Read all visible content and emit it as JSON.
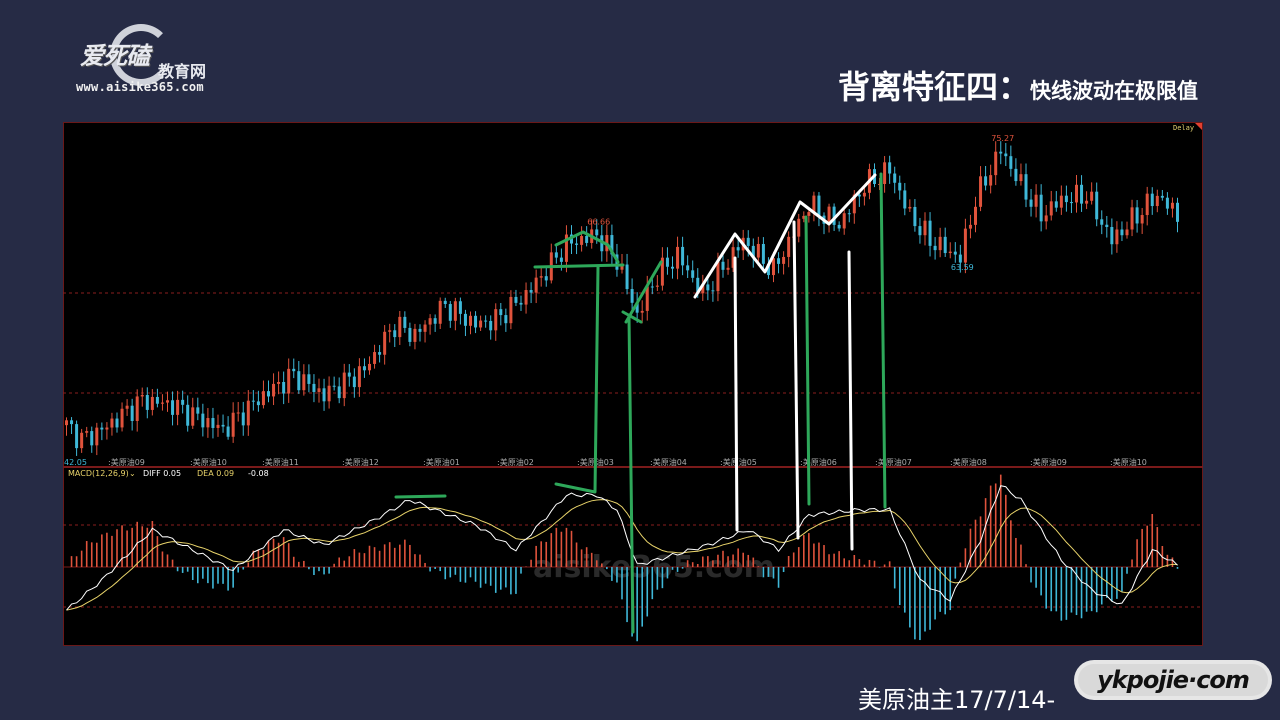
{
  "logo": {
    "brand": "爱死磕",
    "sub": "教育网",
    "url": "www.aisike365.com"
  },
  "title": {
    "main": "背离特征四",
    "colon": "：",
    "sub": "快线波动在极限值"
  },
  "footer": {
    "caption": "美原油主17/7/14-"
  },
  "watermark": {
    "text": "ykpojie·com",
    "panel_text": "aisike365.com"
  },
  "chart": {
    "status": "Delay",
    "low_left_label": "42.05",
    "macd_header": {
      "name": "MACD(12,26,9)",
      "arrow": "⌄",
      "diff": "DIFF 0.05",
      "dea": "DEA 0.09",
      "macd": "-0.08"
    },
    "colors": {
      "up": "#e0533c",
      "down": "#3fb8d8",
      "diff_line": "#ffffff",
      "dea_line": "#e8d36a",
      "grid": "#8a1e1e",
      "annotation_green": "#2ea85a",
      "annotation_white": "#ffffff"
    }
  },
  "chart_data": {
    "type": "candlestick",
    "x_tick_labels": [
      ":美原油09",
      ":美原油10",
      ":美原油11",
      ":美原油12",
      ":美原油01",
      ":美原油02",
      ":美原油03",
      ":美原油04",
      ":美原油05",
      ":美原油06",
      ":美原油07",
      ":美原油08",
      ":美原油09",
      ":美原油10"
    ],
    "price_annotations": [
      {
        "label": "66.66",
        "bar": 105,
        "price": 66.66
      },
      {
        "label": "75.27",
        "bar": 185,
        "price": 75.27
      },
      {
        "label": "63.59",
        "bar": 177,
        "price": 63.59
      }
    ],
    "price_path": [
      [
        0,
        46.3
      ],
      [
        3,
        44.8
      ],
      [
        7,
        45.8
      ],
      [
        15,
        48.9
      ],
      [
        21,
        48.4
      ],
      [
        31,
        45.8
      ],
      [
        39,
        49.4
      ],
      [
        45,
        51.5
      ],
      [
        51,
        49.4
      ],
      [
        59,
        52.0
      ],
      [
        65,
        56.7
      ],
      [
        69,
        55.6
      ],
      [
        75,
        58.7
      ],
      [
        81,
        56.7
      ],
      [
        85,
        57.2
      ],
      [
        91,
        59.8
      ],
      [
        95,
        62.3
      ],
      [
        99,
        65.0
      ],
      [
        105,
        66.0
      ],
      [
        109,
        63.4
      ],
      [
        113,
        57.7
      ],
      [
        117,
        61.8
      ],
      [
        121,
        63.9
      ],
      [
        126,
        59.8
      ],
      [
        134,
        65.4
      ],
      [
        140,
        62.3
      ],
      [
        147,
        69.1
      ],
      [
        153,
        67.0
      ],
      [
        158,
        71.1
      ],
      [
        163,
        72.7
      ],
      [
        167,
        68.0
      ],
      [
        171,
        65.4
      ],
      [
        177,
        63.6
      ],
      [
        180,
        69.6
      ],
      [
        185,
        74.8
      ],
      [
        189,
        71.1
      ],
      [
        193,
        68.0
      ],
      [
        197,
        69.6
      ],
      [
        202,
        70.1
      ],
      [
        207,
        65.4
      ],
      [
        211,
        67.5
      ],
      [
        216,
        70.1
      ],
      [
        220,
        68.0
      ]
    ],
    "macd_diff_path": [
      [
        0,
        -1.08
      ],
      [
        7,
        -0.33
      ],
      [
        17,
        0.93
      ],
      [
        27,
        0.3
      ],
      [
        33,
        -0.08
      ],
      [
        43,
        0.93
      ],
      [
        51,
        0.55
      ],
      [
        61,
        1.18
      ],
      [
        68,
        1.68
      ],
      [
        73,
        1.43
      ],
      [
        81,
        1.05
      ],
      [
        89,
        0.43
      ],
      [
        99,
        1.8
      ],
      [
        105,
        1.8
      ],
      [
        109,
        1.43
      ],
      [
        113,
        0.05
      ],
      [
        117,
        0.18
      ],
      [
        127,
        0.55
      ],
      [
        135,
        0.93
      ],
      [
        141,
        0.43
      ],
      [
        147,
        1.3
      ],
      [
        157,
        1.43
      ],
      [
        163,
        1.43
      ],
      [
        169,
        -0.33
      ],
      [
        175,
        -0.83
      ],
      [
        181,
        0.68
      ],
      [
        185,
        2.05
      ],
      [
        189,
        1.68
      ],
      [
        197,
        0.18
      ],
      [
        203,
        -0.58
      ],
      [
        209,
        -0.95
      ],
      [
        215,
        0.43
      ],
      [
        220,
        0.05
      ]
    ]
  }
}
